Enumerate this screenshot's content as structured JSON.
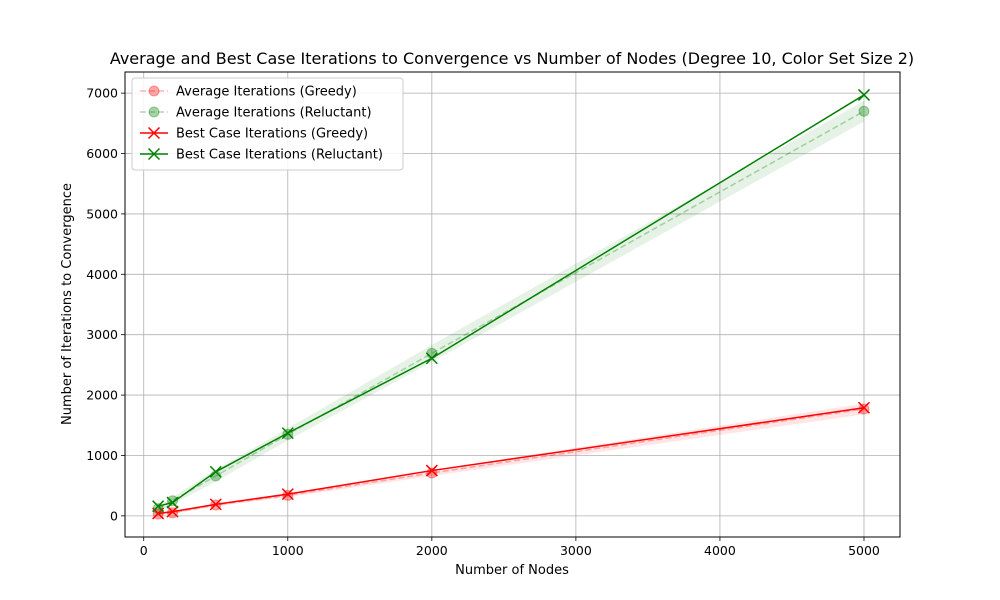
{
  "chart_data": {
    "type": "line",
    "title": "Average and Best Case Iterations to Convergence vs Number of Nodes (Degree 10, Color Set Size 2)",
    "xlabel": "Number of Nodes",
    "ylabel": "Number of Iterations to Convergence",
    "xlim": [
      -130,
      5250
    ],
    "ylim": [
      -350,
      7350
    ],
    "xticks": [
      0,
      1000,
      2000,
      3000,
      4000,
      5000
    ],
    "yticks": [
      0,
      1000,
      2000,
      3000,
      4000,
      5000,
      6000,
      7000
    ],
    "grid": true,
    "legend_position": "top-left",
    "x": [
      100,
      200,
      500,
      1000,
      2000,
      5000
    ],
    "series": [
      {
        "name": "Average Iterations (Greedy)",
        "values": [
          30,
          50,
          180,
          340,
          710,
          1770
        ],
        "band_low": [
          15,
          35,
          160,
          310,
          660,
          1680
        ],
        "band_high": [
          45,
          70,
          200,
          370,
          760,
          1860
        ],
        "color": "#ff0000",
        "style": "dashed",
        "marker": "circle",
        "faded": true
      },
      {
        "name": "Average Iterations (Reluctant)",
        "values": [
          120,
          250,
          660,
          1350,
          2690,
          6700
        ],
        "band_low": [
          80,
          190,
          570,
          1250,
          2550,
          6530
        ],
        "band_high": [
          160,
          310,
          760,
          1450,
          2830,
          6870
        ],
        "color": "#008000",
        "style": "dashed",
        "marker": "circle",
        "faded": true
      },
      {
        "name": "Best Case Iterations (Greedy)",
        "values": [
          40,
          70,
          190,
          360,
          750,
          1790
        ],
        "color": "#ff0000",
        "style": "solid",
        "marker": "x",
        "faded": false
      },
      {
        "name": "Best Case Iterations (Reluctant)",
        "values": [
          160,
          220,
          730,
          1370,
          2610,
          6970
        ],
        "color": "#008000",
        "style": "solid",
        "marker": "x",
        "faded": false
      }
    ]
  }
}
